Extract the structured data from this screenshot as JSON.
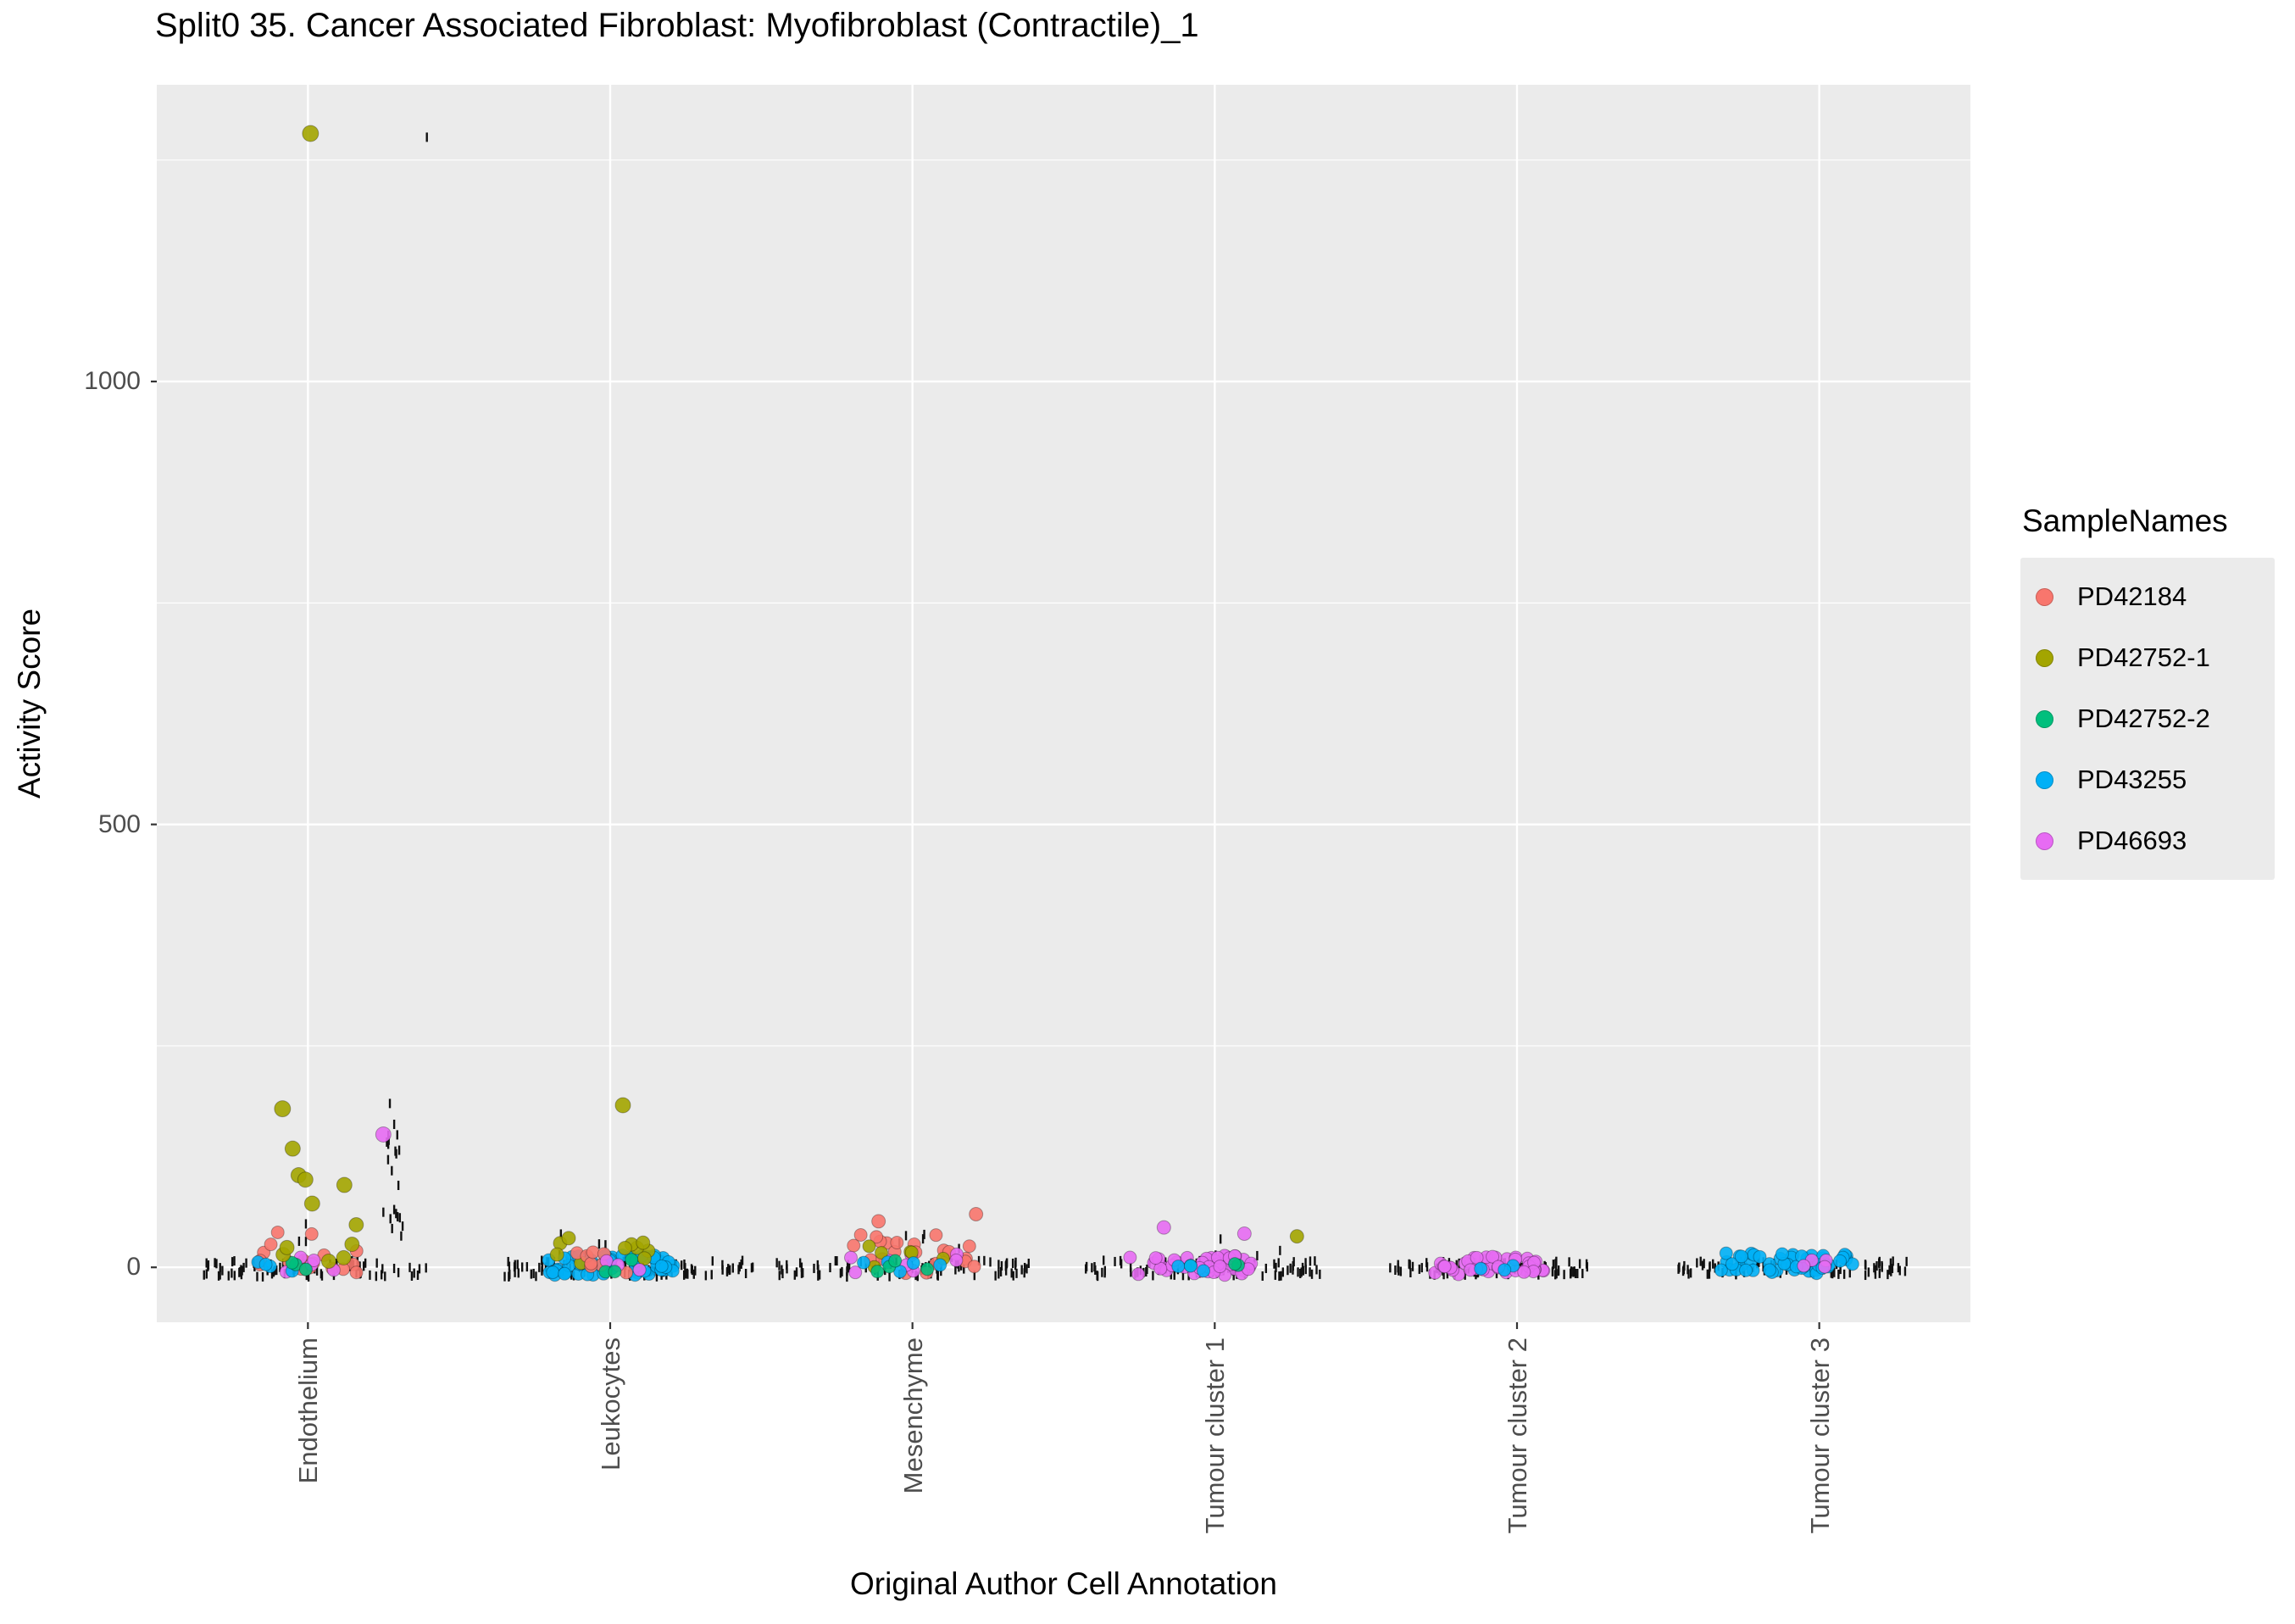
{
  "chart_data": {
    "type": "scatter",
    "title": "Split0 35. Cancer Associated Fibroblast: Myofibroblast (Contractile)_1",
    "xlabel": "Original Author Cell Annotation",
    "ylabel": "Activity Score",
    "legend_title": "SampleNames",
    "categories": [
      "Endothelium",
      "Leukocytes",
      "Mesenchyme",
      "Tumour cluster 1",
      "Tumour cluster 2",
      "Tumour cluster 3"
    ],
    "ytick_labels": [
      "0",
      "500",
      "1000"
    ],
    "grid": {
      "major": [
        0,
        500,
        1000
      ],
      "minor": [
        250,
        750,
        1250
      ]
    },
    "ylim": [
      -62,
      1335
    ],
    "panel_background": "#EBEBEB",
    "gridline_color": "#FFFFFF",
    "tick_color": "#333333",
    "strip_mark_color": "#111111",
    "samples": [
      {
        "name": "PD42184",
        "color": "#F8766D"
      },
      {
        "name": "PD42752-1",
        "color": "#A3A500"
      },
      {
        "name": "PD42752-2",
        "color": "#00BF7D"
      },
      {
        "name": "PD43255",
        "color": "#00B0F6"
      },
      {
        "name": "PD46693",
        "color": "#E76BF3"
      }
    ],
    "strip_groups": [
      {
        "category": 0,
        "n": 85,
        "y": [
          -11,
          8
        ],
        "spread": 270,
        "shift": 7,
        "seed": 11
      },
      {
        "category": 0,
        "n": 20,
        "y": [
          5,
          185
        ],
        "spread": 22,
        "shift": 100,
        "seed": 12
      },
      {
        "category": 0,
        "n": 1,
        "y": [
          1274,
          1277
        ],
        "spread": 2,
        "shift": 140,
        "seed": 13
      },
      {
        "category": 0,
        "n": 5,
        "y": [
          10,
          55
        ],
        "spread": 160,
        "shift": 40,
        "seed": 14
      },
      {
        "category": 1,
        "n": 105,
        "y": [
          -11,
          8
        ],
        "spread": 295,
        "shift": 22,
        "seed": 21
      },
      {
        "category": 1,
        "n": 5,
        "y": [
          10,
          40
        ],
        "spread": 90,
        "shift": -30,
        "seed": 22
      },
      {
        "category": 2,
        "n": 95,
        "y": [
          -11,
          8
        ],
        "spread": 300,
        "shift": -12,
        "seed": 31
      },
      {
        "category": 2,
        "n": 6,
        "y": [
          10,
          45
        ],
        "spread": 130,
        "shift": 30,
        "seed": 32
      },
      {
        "category": 3,
        "n": 100,
        "y": [
          -10,
          8
        ],
        "spread": 280,
        "shift": -15,
        "seed": 41
      },
      {
        "category": 3,
        "n": 5,
        "y": [
          10,
          35
        ],
        "spread": 90,
        "shift": 40,
        "seed": 42
      },
      {
        "category": 4,
        "n": 85,
        "y": [
          -9,
          7
        ],
        "spread": 240,
        "shift": -30,
        "seed": 51
      },
      {
        "category": 5,
        "n": 90,
        "y": [
          -9,
          7
        ],
        "spread": 270,
        "shift": -32,
        "seed": 61
      }
    ],
    "jitter_groups": [
      {
        "category": 0,
        "sample": "PD42184",
        "n": 16,
        "y": [
          -9,
          22
        ],
        "spread": 130,
        "shift": 0,
        "r": 7.5,
        "seed": 101
      },
      {
        "category": 0,
        "sample": "PD42184",
        "n": 3,
        "y": [
          24,
          40
        ],
        "spread": 70,
        "shift": -10,
        "r": 7.5,
        "seed": 102
      },
      {
        "category": 0,
        "sample": "PD46693",
        "n": 5,
        "y": [
          -6,
          12
        ],
        "spread": 90,
        "shift": -10,
        "r": 7.5,
        "seed": 103
      },
      {
        "category": 0,
        "sample": "PD43255",
        "n": 4,
        "y": [
          -6,
          9
        ],
        "spread": 80,
        "shift": -20,
        "r": 7.5,
        "seed": 104
      },
      {
        "category": 0,
        "sample": "PD42752-2",
        "n": 3,
        "y": [
          -5,
          8
        ],
        "spread": 60,
        "shift": -15,
        "r": 7.5,
        "seed": 105
      },
      {
        "category": 0,
        "sample": "PD42752-1",
        "n": 4,
        "y": [
          5,
          25
        ],
        "spread": 80,
        "shift": 10,
        "r": 8.5,
        "seed": 106
      },
      {
        "category": 1,
        "sample": "PD43255",
        "n": 55,
        "y": [
          -9,
          14
        ],
        "spread": 150,
        "shift": 0,
        "r": 7.5,
        "seed": 111
      },
      {
        "category": 1,
        "sample": "PD42752-1",
        "n": 10,
        "y": [
          4,
          34
        ],
        "spread": 110,
        "shift": -10,
        "r": 8,
        "seed": 112
      },
      {
        "category": 1,
        "sample": "PD42184",
        "n": 8,
        "y": [
          -6,
          20
        ],
        "spread": 115,
        "shift": -10,
        "r": 7.5,
        "seed": 113
      },
      {
        "category": 1,
        "sample": "PD46693",
        "n": 3,
        "y": [
          -5,
          8
        ],
        "spread": 70,
        "shift": 0,
        "r": 7.5,
        "seed": 114
      },
      {
        "category": 1,
        "sample": "PD42752-2",
        "n": 3,
        "y": [
          -5,
          10
        ],
        "spread": 80,
        "shift": -5,
        "r": 7.5,
        "seed": 115
      },
      {
        "category": 2,
        "sample": "PD42184",
        "n": 22,
        "y": [
          -8,
          38
        ],
        "spread": 160,
        "shift": -5,
        "r": 7.5,
        "seed": 121
      },
      {
        "category": 2,
        "sample": "PD46693",
        "n": 8,
        "y": [
          -6,
          18
        ],
        "spread": 130,
        "shift": -10,
        "r": 7.5,
        "seed": 122
      },
      {
        "category": 2,
        "sample": "PD42752-1",
        "n": 6,
        "y": [
          0,
          25
        ],
        "spread": 110,
        "shift": 0,
        "r": 7.5,
        "seed": 123
      },
      {
        "category": 2,
        "sample": "PD43255",
        "n": 5,
        "y": [
          -6,
          10
        ],
        "spread": 100,
        "shift": -15,
        "r": 7.5,
        "seed": 124
      },
      {
        "category": 2,
        "sample": "PD42752-2",
        "n": 4,
        "y": [
          -5,
          10
        ],
        "spread": 90,
        "shift": -25,
        "r": 7.5,
        "seed": 125
      },
      {
        "category": 3,
        "sample": "PD46693",
        "n": 45,
        "y": [
          -9,
          14
        ],
        "spread": 150,
        "shift": -30,
        "r": 7.5,
        "seed": 131
      },
      {
        "category": 3,
        "sample": "PD42752-2",
        "n": 3,
        "y": [
          0,
          10
        ],
        "spread": 60,
        "shift": 0,
        "r": 7.5,
        "seed": 132
      },
      {
        "category": 3,
        "sample": "PD43255",
        "n": 3,
        "y": [
          -5,
          8
        ],
        "spread": 80,
        "shift": -10,
        "r": 7.5,
        "seed": 133
      },
      {
        "category": 4,
        "sample": "PD46693",
        "n": 40,
        "y": [
          -8,
          12
        ],
        "spread": 140,
        "shift": -30,
        "r": 7.5,
        "seed": 141
      },
      {
        "category": 4,
        "sample": "PD43255",
        "n": 3,
        "y": [
          -5,
          6
        ],
        "spread": 80,
        "shift": -40,
        "r": 7.5,
        "seed": 142
      },
      {
        "category": 5,
        "sample": "PD43255",
        "n": 50,
        "y": [
          -7,
          16
        ],
        "spread": 160,
        "shift": -38,
        "r": 7.5,
        "seed": 151
      },
      {
        "category": 5,
        "sample": "PD46693",
        "n": 4,
        "y": [
          -5,
          8
        ],
        "spread": 90,
        "shift": -30,
        "r": 7.5,
        "seed": 152
      }
    ],
    "explicit_points": [
      {
        "category": 0,
        "sample": "PD42752-1",
        "y": 1280,
        "shift": 3,
        "r": 9.5
      },
      {
        "category": 0,
        "sample": "PD42752-1",
        "y": 179,
        "shift": -30,
        "r": 9.5
      },
      {
        "category": 0,
        "sample": "PD42752-1",
        "y": 134,
        "shift": -18,
        "r": 9
      },
      {
        "category": 0,
        "sample": "PD42752-1",
        "y": 104,
        "shift": -11,
        "r": 9
      },
      {
        "category": 0,
        "sample": "PD42752-1",
        "y": 99,
        "shift": -3,
        "r": 9
      },
      {
        "category": 0,
        "sample": "PD42752-1",
        "y": 93,
        "shift": 43,
        "r": 9
      },
      {
        "category": 0,
        "sample": "PD42752-1",
        "y": 72,
        "shift": 5,
        "r": 9
      },
      {
        "category": 0,
        "sample": "PD42752-1",
        "y": 48,
        "shift": 57,
        "r": 8.5
      },
      {
        "category": 0,
        "sample": "PD42752-1",
        "y": 26,
        "shift": 52,
        "r": 8.5
      },
      {
        "category": 0,
        "sample": "PD46693",
        "y": 150,
        "shift": 89,
        "r": 9
      },
      {
        "category": 1,
        "sample": "PD42752-1",
        "y": 183,
        "shift": 15,
        "r": 9
      },
      {
        "category": 2,
        "sample": "PD42184",
        "y": 60,
        "shift": 75,
        "r": 8
      },
      {
        "category": 2,
        "sample": "PD42184",
        "y": 52,
        "shift": -40,
        "r": 8
      },
      {
        "category": 3,
        "sample": "PD46693",
        "y": 45,
        "shift": -60,
        "r": 8
      },
      {
        "category": 3,
        "sample": "PD46693",
        "y": 38,
        "shift": 35,
        "r": 8
      },
      {
        "category": 3,
        "sample": "PD42752-1",
        "y": 35,
        "shift": 97,
        "r": 8
      }
    ]
  }
}
